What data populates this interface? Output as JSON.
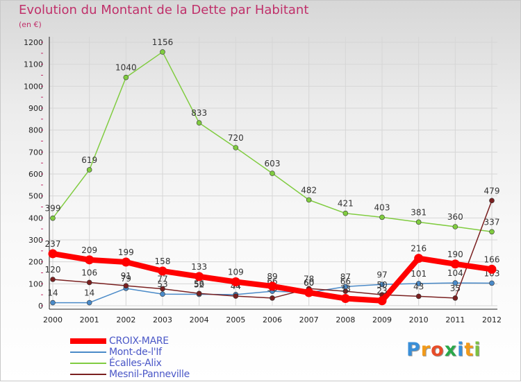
{
  "chart_data": {
    "type": "line",
    "title": "Evolution du Montant de la Dette par Habitant",
    "subtitle": "(en €)",
    "x": [
      "2000",
      "2001",
      "2002",
      "2003",
      "2004",
      "2005",
      "2006",
      "2007",
      "2008",
      "2009",
      "2010",
      "2011",
      "2012"
    ],
    "ylim": [
      0,
      1200
    ],
    "yticks": [
      0,
      100,
      200,
      300,
      400,
      500,
      600,
      700,
      800,
      900,
      1000,
      1100,
      1200
    ],
    "grid": true,
    "legend_position": "bottom-left",
    "series": [
      {
        "name": "CROIX-MARE",
        "color": "#ff0000",
        "values": [
          237,
          209,
          199,
          158,
          133,
          109,
          89,
          60,
          33,
          23,
          216,
          190,
          166
        ]
      },
      {
        "name": "Mont-de-l'If",
        "color": "#4a8ac8",
        "values": [
          14,
          14,
          79,
          53,
          52,
          51,
          66,
          60,
          87,
          97,
          101,
          104,
          103
        ]
      },
      {
        "name": "Écalles-Alix",
        "color": "#80cc40",
        "values": [
          399,
          619,
          1040,
          1156,
          833,
          720,
          603,
          482,
          421,
          403,
          381,
          360,
          337
        ]
      },
      {
        "name": "Mesnil-Panneville",
        "color": "#7a2020",
        "values": [
          120,
          106,
          91,
          77,
          56,
          44,
          35,
          78,
          66,
          50,
          43,
          35,
          479
        ]
      }
    ]
  },
  "logo": {
    "letters": [
      "P",
      "r",
      "o",
      "x",
      "i",
      "t",
      "i"
    ],
    "colors": [
      "#3a8fd8",
      "#f29a1a",
      "#e84c28",
      "#2aa84a",
      "#3a8fd8",
      "#f29a1a",
      "#7cc142"
    ]
  }
}
